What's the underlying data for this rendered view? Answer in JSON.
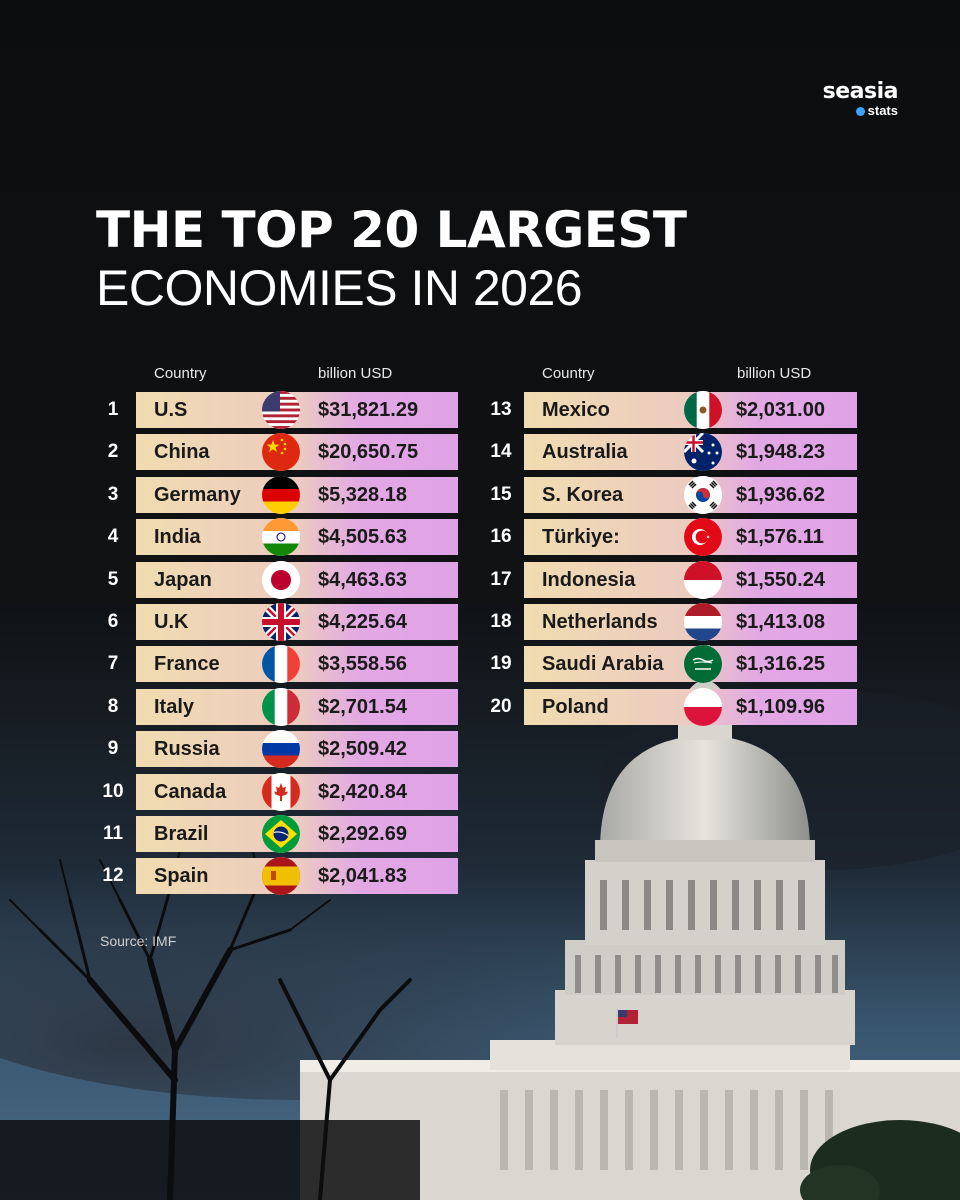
{
  "brand": {
    "name": "seasia",
    "sub": "stats"
  },
  "title": {
    "line1": "THE TOP 20 LARGEST",
    "line2": "ECONOMIES IN 2026"
  },
  "source": "Source: IMF",
  "chart_data": {
    "type": "table",
    "columns": [
      "Country",
      "billion USD"
    ],
    "rows": [
      {
        "rank": "1",
        "country": "U.S",
        "value": "$31,821.29",
        "flag": "us-flag-icon"
      },
      {
        "rank": "2",
        "country": "China",
        "value": "$20,650.75",
        "flag": "china-flag-icon"
      },
      {
        "rank": "3",
        "country": "Germany",
        "value": "$5,328.18",
        "flag": "germany-flag-icon"
      },
      {
        "rank": "4",
        "country": "India",
        "value": "$4,505.63",
        "flag": "india-flag-icon"
      },
      {
        "rank": "5",
        "country": "Japan",
        "value": "$4,463.63",
        "flag": "japan-flag-icon"
      },
      {
        "rank": "6",
        "country": "U.K",
        "value": "$4,225.64",
        "flag": "uk-flag-icon"
      },
      {
        "rank": "7",
        "country": "France",
        "value": "$3,558.56",
        "flag": "france-flag-icon"
      },
      {
        "rank": "8",
        "country": "Italy",
        "value": "$2,701.54",
        "flag": "italy-flag-icon"
      },
      {
        "rank": "9",
        "country": "Russia",
        "value": "$2,509.42",
        "flag": "russia-flag-icon"
      },
      {
        "rank": "10",
        "country": "Canada",
        "value": "$2,420.84",
        "flag": "canada-flag-icon"
      },
      {
        "rank": "11",
        "country": "Brazil",
        "value": "$2,292.69",
        "flag": "brazil-flag-icon"
      },
      {
        "rank": "12",
        "country": "Spain",
        "value": "$2,041.83",
        "flag": "spain-flag-icon"
      },
      {
        "rank": "13",
        "country": "Mexico",
        "value": "$2,031.00",
        "flag": "mexico-flag-icon"
      },
      {
        "rank": "14",
        "country": "Australia",
        "value": "$1,948.23",
        "flag": "australia-flag-icon"
      },
      {
        "rank": "15",
        "country": "S. Korea",
        "value": "$1,936.62",
        "flag": "south-korea-flag-icon"
      },
      {
        "rank": "16",
        "country": "Türkiye:",
        "value": "$1,576.11",
        "flag": "turkiye-flag-icon"
      },
      {
        "rank": "17",
        "country": "Indonesia",
        "value": "$1,550.24",
        "flag": "indonesia-flag-icon"
      },
      {
        "rank": "18",
        "country": "Netherlands",
        "value": "$1,413.08",
        "flag": "netherlands-flag-icon"
      },
      {
        "rank": "19",
        "country": "Saudi Arabia",
        "value": "$1,316.25",
        "flag": "saudi-arabia-flag-icon"
      },
      {
        "rank": "20",
        "country": "Poland",
        "value": "$1,109.96",
        "flag": "poland-flag-icon"
      }
    ]
  },
  "colors": {
    "bar_start": "#f0dcb0",
    "bar_end": "#e0a2e6",
    "background": "#0d0e10"
  }
}
